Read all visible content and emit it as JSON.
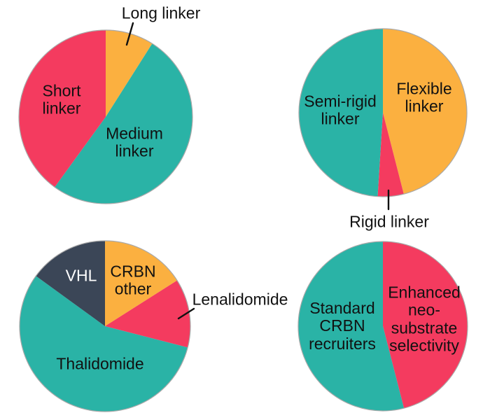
{
  "figure": {
    "background": "#ffffff",
    "description": "Four pie charts: linker length, linker type, CRBN recruiter identity, and neo-substrate selectivity"
  },
  "palette": {
    "teal": "#2ab3a6",
    "pink_red": "#f43b5f",
    "amber": "#fbb040",
    "dark_slate": "#3b4657"
  },
  "chart_data": [
    {
      "type": "pie",
      "name": "linker-length-distribution",
      "start_angle_deg": 0,
      "direction": "clockwise",
      "units": "percent (estimated from slice angles)",
      "slices": [
        {
          "label": "Long linker",
          "value": 9,
          "color": "#fbb040"
        },
        {
          "label": "Medium linker",
          "value": 51,
          "color": "#2ab3a6"
        },
        {
          "label": "Short linker",
          "value": 40,
          "color": "#f43b5f"
        }
      ]
    },
    {
      "type": "pie",
      "name": "linker-type-distribution",
      "start_angle_deg": 0,
      "direction": "clockwise",
      "units": "percent (estimated from slice angles)",
      "slices": [
        {
          "label": "Flexible linker",
          "value": 46,
          "color": "#fbb040"
        },
        {
          "label": "Rigid linker",
          "value": 5,
          "color": "#f43b5f"
        },
        {
          "label": "Semi-rigid linker",
          "value": 49,
          "color": "#2ab3a6"
        }
      ]
    },
    {
      "type": "pie",
      "name": "recruiter-distribution",
      "start_angle_deg": 0,
      "direction": "clockwise",
      "units": "percent (estimated from slice angles)",
      "slices": [
        {
          "label": "CRBN other",
          "value": 16,
          "color": "#fbb040"
        },
        {
          "label": "Lenalidomide",
          "value": 13,
          "color": "#f43b5f"
        },
        {
          "label": "Thalidomide",
          "value": 56,
          "color": "#2ab3a6"
        },
        {
          "label": "VHL",
          "value": 15,
          "color": "#3b4657"
        }
      ]
    },
    {
      "type": "pie",
      "name": "selectivity-distribution",
      "start_angle_deg": 0,
      "direction": "clockwise",
      "units": "percent (estimated from slice angles)",
      "slices": [
        {
          "label": "Enhanced neo-substrate selectivity",
          "value": 46,
          "color": "#f43b5f"
        },
        {
          "label": "Standard CRBN recruiters",
          "value": 54,
          "color": "#2ab3a6"
        }
      ]
    }
  ],
  "labels": {
    "long_linker": "Long linker",
    "short_linker": "Short\nlinker",
    "medium_linker": "Medium\nlinker",
    "flexible_linker": "Flexible\nlinker",
    "semi_rigid_linker": "Semi-rigid\nlinker",
    "rigid_linker": "Rigid linker",
    "vhl": "VHL",
    "crbn_other": "CRBN\nother",
    "lenalidomide": "Lenalidomide",
    "thalidomide": "Thalidomide",
    "standard_crbn_recruiters": "Standard\nCRBN\nrecruiters",
    "enhanced_neo_substrate_selectivity": "Enhanced\nneo-\nsubstrate\nselectivity"
  }
}
